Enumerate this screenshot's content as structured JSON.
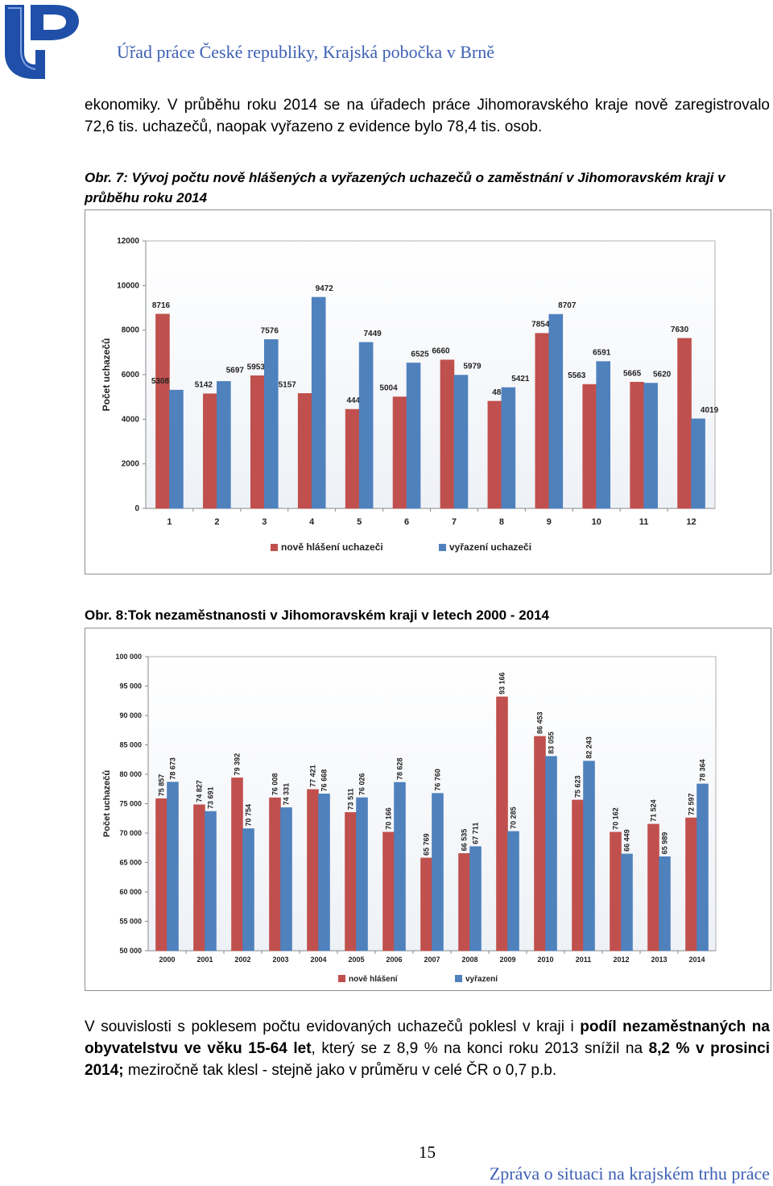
{
  "header": {
    "title": "Úřad práce České republiky, Krajská pobočka v Brně"
  },
  "intro": {
    "text": "ekonomiky.   V průběhu roku 2014 se na úřadech práce Jihomoravského kraje nově zaregistrovalo 72,6 tis. uchazečů, naopak vyřazeno z evidence bylo 78,4 tis. osob."
  },
  "figure7": {
    "caption_lead": "Obr.",
    "caption_rest": " 7: Vývoj počtu nově hlášených a vyřazených uchazečů o zaměstnání v Jihomoravském kraji v průběhu roku 2014"
  },
  "figure8": {
    "caption_lead": "Obr.",
    "caption_rest": " 8:Tok nezaměstnanosti v Jihomoravském kraji v letech 2000 - 2014"
  },
  "body": {
    "t1": "V souvislosti s poklesem počtu evidovaných uchazečů poklesl v kraji i ",
    "b1": "podíl nezaměstnaných na obyvatelstvu ve věku 15-64 let",
    "t2": ", který se z 8,9 % na konci roku 2013 snížil na ",
    "b2": "8,2 % v prosinci 2014;",
    "t3": " meziročně tak klesl - stejně jako v průměru v celé ČR o 0,7 p.b."
  },
  "footer": {
    "page_number": "15",
    "title": "Zpráva o situaci na krajském trhu práce"
  },
  "colors": {
    "red": "#c0504d",
    "blue": "#4f81bd",
    "accent": "#3e61b4"
  },
  "chart_data": [
    {
      "type": "bar",
      "title": "",
      "xlabel": "",
      "ylabel": "Počet uchazečů",
      "categories": [
        "1",
        "2",
        "3",
        "4",
        "5",
        "6",
        "7",
        "8",
        "9",
        "10",
        "11",
        "12"
      ],
      "ylim": [
        0,
        12000
      ],
      "yticks": [
        0,
        2000,
        4000,
        6000,
        8000,
        10000,
        12000
      ],
      "ytick_labels": [
        "0",
        "2000",
        "4000",
        "6000",
        "8000",
        "10000",
        "12000"
      ],
      "legend": "bottom",
      "series": [
        {
          "name": "nově hlášení uchazeči",
          "color": "#c0504d",
          "values": [
            8716,
            5142,
            5953,
            5157,
            4444,
            5004,
            6660,
            4809,
            7854,
            5563,
            5665,
            7630
          ],
          "labels": [
            "8716",
            "5142",
            "5953",
            "5157",
            "4444",
            "5004",
            "6660",
            "4809",
            "7854",
            "5563",
            "5665",
            "7630"
          ]
        },
        {
          "name": "vyřazení uchazeči",
          "color": "#4f81bd",
          "values": [
            5308,
            5697,
            7576,
            9472,
            7449,
            6525,
            5979,
            5421,
            8707,
            6591,
            5620,
            4019
          ],
          "labels": [
            "5308",
            "5697",
            "7576",
            "9472",
            "7449",
            "6525",
            "5979",
            "5421",
            "8707",
            "6591",
            "5620",
            "4019"
          ]
        }
      ]
    },
    {
      "type": "bar",
      "title": "",
      "xlabel": "",
      "ylabel": "Počet uchazečů",
      "categories": [
        "2000",
        "2001",
        "2002",
        "2003",
        "2004",
        "2005",
        "2006",
        "2007",
        "2008",
        "2009",
        "2010",
        "2011",
        "2012",
        "2013",
        "2014"
      ],
      "ylim": [
        50000,
        100000
      ],
      "yticks": [
        50000,
        55000,
        60000,
        65000,
        70000,
        75000,
        80000,
        85000,
        90000,
        95000,
        100000
      ],
      "ytick_labels": [
        "50 000",
        "55 000",
        "60 000",
        "65 000",
        "70 000",
        "75 000",
        "80 000",
        "85 000",
        "90 000",
        "95 000",
        "100 000"
      ],
      "legend": "bottom",
      "series": [
        {
          "name": "nově hlášení",
          "color": "#c0504d",
          "values": [
            75857,
            74827,
            79392,
            76008,
            77421,
            73511,
            70166,
            65769,
            66535,
            93166,
            86453,
            75623,
            70162,
            71524,
            72597
          ],
          "labels": [
            "75 857",
            "74 827",
            "79 392",
            "76 008",
            "77 421",
            "73 511",
            "70 166",
            "65 769",
            "66 535",
            "93 166",
            "86 453",
            "75 623",
            "70 162",
            "71 524",
            "72 597"
          ]
        },
        {
          "name": "vyřazení",
          "color": "#4f81bd",
          "values": [
            78673,
            73691,
            70754,
            74331,
            76668,
            76026,
            78628,
            76760,
            67711,
            70285,
            83055,
            82243,
            66449,
            65989,
            78364
          ],
          "labels": [
            "78 673",
            "73 691",
            "70 754",
            "74 331",
            "76 668",
            "76 026",
            "78 628",
            "76 760",
            "67 711",
            "70 285",
            "83 055",
            "82 243",
            "66 449",
            "65 989",
            "78 364"
          ]
        }
      ]
    }
  ]
}
